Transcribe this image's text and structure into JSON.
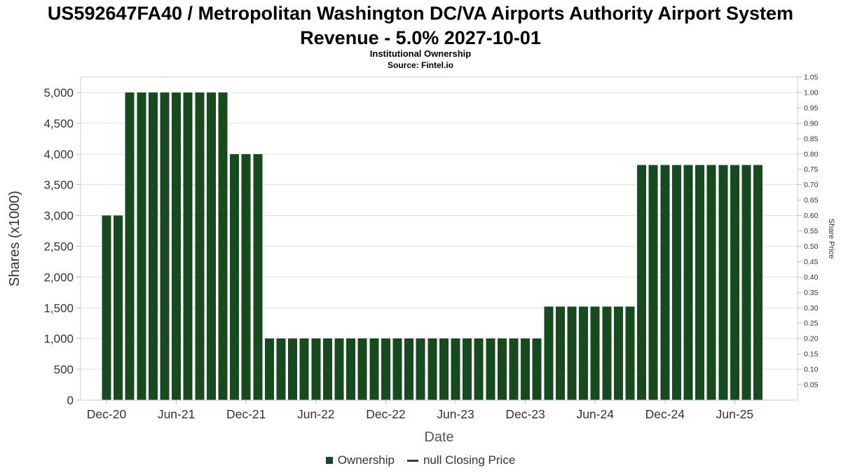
{
  "header": {
    "title_line1": "US592647FA40 / Metropolitan Washington DC/VA Airports Authority Airport System",
    "title_line2": "Revenue - 5.0% 2027-10-01",
    "subtitle": "Institutional Ownership",
    "source": "Source: Fintel.io"
  },
  "legend": {
    "items": [
      {
        "label": "Ownership",
        "marker": "square",
        "color": "#174a1f"
      },
      {
        "label": "null Closing Price",
        "marker": "line",
        "color": "#3a3a3a"
      }
    ]
  },
  "chart_data": {
    "type": "bar",
    "title": "US592647FA40 / Metropolitan Washington DC/VA Airports Authority Airport System Revenue - 5.0% 2027-10-01",
    "subtitle": "Institutional Ownership",
    "source": "Source: Fintel.io",
    "xlabel": "Date",
    "bar_color": "#174a1f",
    "grid_color": "#e0e0e0",
    "axes": {
      "left": {
        "title": "Shares (x1000)",
        "min": 0,
        "max": 5250,
        "ticks": [
          [
            0,
            "0"
          ],
          [
            500,
            "500"
          ],
          [
            1000,
            "1,000"
          ],
          [
            1500,
            "1,500"
          ],
          [
            2000,
            "2,000"
          ],
          [
            2500,
            "2,500"
          ],
          [
            3000,
            "3,000"
          ],
          [
            3500,
            "3,500"
          ],
          [
            4000,
            "4,000"
          ],
          [
            4500,
            "4,500"
          ],
          [
            5000,
            "5,000"
          ]
        ]
      },
      "right": {
        "title": "Share Price",
        "min": 0,
        "max": 1.05,
        "ticks": [
          [
            1.05,
            "1.05"
          ],
          [
            1.0,
            "1.00"
          ],
          [
            0.95,
            "0.95"
          ],
          [
            0.9,
            "0.90"
          ],
          [
            0.85,
            "0.85"
          ],
          [
            0.8,
            "0.80"
          ],
          [
            0.75,
            "0.75"
          ],
          [
            0.7,
            "0.70"
          ],
          [
            0.65,
            "0.65"
          ],
          [
            0.6,
            "0.60"
          ],
          [
            0.55,
            "0.55"
          ],
          [
            0.5,
            "0.50"
          ],
          [
            0.45,
            "0.45"
          ],
          [
            0.4,
            "0.40"
          ],
          [
            0.35,
            "0.35"
          ],
          [
            0.3,
            "0.30"
          ],
          [
            0.25,
            "0.25"
          ],
          [
            0.2,
            "0.20"
          ],
          [
            0.15,
            "0.15"
          ],
          [
            0.1,
            "0.10"
          ],
          [
            0.05,
            "0.05"
          ]
        ]
      }
    },
    "xticks": [
      [
        0,
        "Dec-20"
      ],
      [
        6,
        "Jun-21"
      ],
      [
        12,
        "Dec-21"
      ],
      [
        18,
        "Jun-22"
      ],
      [
        24,
        "Dec-22"
      ],
      [
        30,
        "Jun-23"
      ],
      [
        36,
        "Dec-23"
      ],
      [
        42,
        "Jun-24"
      ],
      [
        48,
        "Dec-24"
      ],
      [
        54,
        "Jun-25"
      ]
    ],
    "categories": [
      "Dec-20",
      "Jan-21",
      "Feb-21",
      "Mar-21",
      "Apr-21",
      "May-21",
      "Jun-21",
      "Jul-21",
      "Aug-21",
      "Sep-21",
      "Oct-21",
      "Nov-21",
      "Dec-21",
      "Jan-22",
      "Feb-22",
      "Mar-22",
      "Apr-22",
      "May-22",
      "Jun-22",
      "Jul-22",
      "Aug-22",
      "Sep-22",
      "Oct-22",
      "Nov-22",
      "Dec-22",
      "Jan-23",
      "Feb-23",
      "Mar-23",
      "Apr-23",
      "May-23",
      "Jun-23",
      "Jul-23",
      "Aug-23",
      "Sep-23",
      "Oct-23",
      "Nov-23",
      "Dec-23",
      "Jan-24",
      "Feb-24",
      "Mar-24",
      "Apr-24",
      "May-24",
      "Jun-24",
      "Jul-24",
      "Aug-24",
      "Sep-24",
      "Oct-24",
      "Nov-24",
      "Dec-24",
      "Jan-25",
      "Feb-25",
      "Mar-25",
      "Apr-25",
      "May-25",
      "Jun-25",
      "Jul-25",
      "Aug-25"
    ],
    "values": [
      3000,
      3000,
      5000,
      5000,
      5000,
      5000,
      5000,
      5000,
      5000,
      5000,
      5000,
      4000,
      4000,
      4000,
      1000,
      1000,
      1000,
      1000,
      1000,
      1000,
      1000,
      1000,
      1000,
      1000,
      1000,
      1000,
      1000,
      1000,
      1000,
      1000,
      1000,
      1000,
      1000,
      1000,
      1000,
      1000,
      1000,
      1000,
      1520,
      1520,
      1520,
      1520,
      1520,
      1520,
      1520,
      1520,
      3820,
      3820,
      3820,
      3820,
      3820,
      3820,
      3820,
      3820,
      3820,
      3820,
      3820
    ]
  }
}
